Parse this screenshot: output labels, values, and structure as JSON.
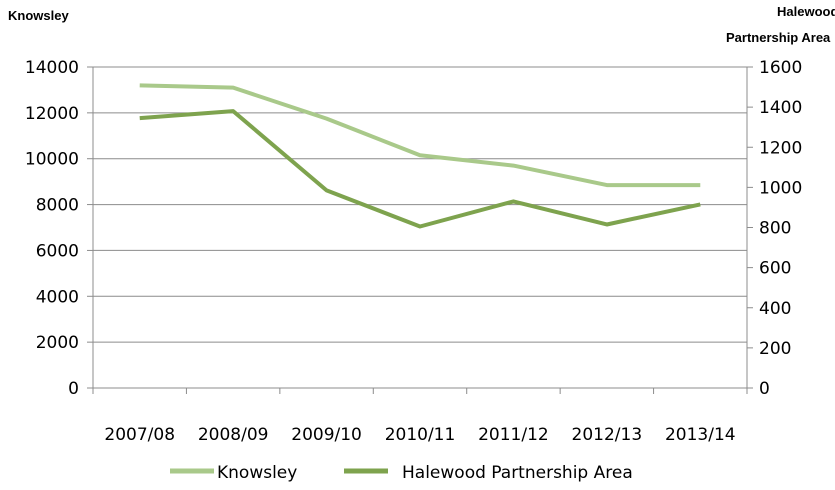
{
  "chart_data": {
    "type": "line",
    "categories": [
      "2007/08",
      "2008/09",
      "2009/10",
      "2010/11",
      "2011/12",
      "2012/13",
      "2013/14"
    ],
    "series": [
      {
        "name": "Knowsley",
        "axis": "left",
        "color": "#a9c98a",
        "values": [
          13200,
          13100,
          11750,
          10150,
          9700,
          8850,
          8850
        ]
      },
      {
        "name": "Halewood Partnership Area",
        "axis": "right",
        "color": "#7ea34e",
        "values": [
          1345,
          1380,
          985,
          805,
          930,
          815,
          915
        ]
      }
    ],
    "left_axis": {
      "title": "Knowsley",
      "ylim": [
        0,
        14000
      ],
      "ticks": [
        "0",
        "2000",
        "4000",
        "6000",
        "8000",
        "10000",
        "12000",
        "14000"
      ]
    },
    "right_axis": {
      "title_lines": [
        "Halewood",
        "Partnership Area"
      ],
      "ylim": [
        0,
        1600
      ],
      "ticks": [
        "0",
        "200",
        "400",
        "600",
        "800",
        "1000",
        "1200",
        "1400",
        "1600"
      ]
    },
    "grid": true,
    "legend": "bottom"
  }
}
